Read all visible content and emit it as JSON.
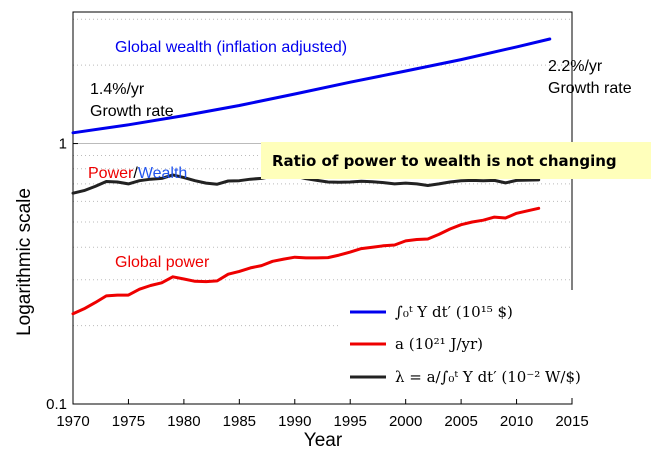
{
  "chart_data": {
    "type": "line",
    "title": "",
    "xlabel": "Year",
    "ylabel": "Logarithmic scale",
    "xlim": [
      1970,
      2015
    ],
    "ylim": [
      0.1,
      3.2
    ],
    "yscale": "log",
    "grid": "horizontal dotted",
    "x_ticks": [
      "1970",
      "1975",
      "1980",
      "1985",
      "1990",
      "1995",
      "2000",
      "2005",
      "2010",
      "2015"
    ],
    "y_ticks": [
      "0.1",
      "1"
    ],
    "legend_placement": "bottom-right",
    "series": [
      {
        "name": "∫₀ᵗ Y dt′ (10¹⁵ $)",
        "color": "#0000ee",
        "x": [
          1970,
          1975,
          1980,
          1985,
          1990,
          1995,
          2000,
          2005,
          2010,
          2013
        ],
        "values": [
          1.1,
          1.18,
          1.28,
          1.4,
          1.55,
          1.72,
          1.9,
          2.1,
          2.35,
          2.52
        ]
      },
      {
        "name": "a (10²¹ J/yr)",
        "color": "#ee0000",
        "x": [
          1970,
          1971,
          1972,
          1973,
          1974,
          1975,
          1976,
          1977,
          1978,
          1979,
          1980,
          1981,
          1982,
          1983,
          1984,
          1985,
          1986,
          1987,
          1988,
          1989,
          1990,
          1991,
          1992,
          1993,
          1994,
          1995,
          1996,
          1997,
          1998,
          1999,
          2000,
          2001,
          2002,
          2003,
          2004,
          2005,
          2006,
          2007,
          2008,
          2009,
          2010,
          2011,
          2012
        ],
        "values": [
          0.222,
          0.232,
          0.245,
          0.26,
          0.262,
          0.262,
          0.276,
          0.285,
          0.292,
          0.308,
          0.302,
          0.296,
          0.295,
          0.297,
          0.315,
          0.323,
          0.333,
          0.34,
          0.353,
          0.36,
          0.366,
          0.364,
          0.364,
          0.365,
          0.373,
          0.383,
          0.395,
          0.4,
          0.405,
          0.408,
          0.423,
          0.428,
          0.43,
          0.448,
          0.47,
          0.488,
          0.5,
          0.508,
          0.522,
          0.518,
          0.54,
          0.552,
          0.564
        ]
      },
      {
        "name": "λ = a/∫₀ᵗ Y dt′ (10⁻² W/$)",
        "color": "#222222",
        "x": [
          1970,
          1971,
          1972,
          1973,
          1974,
          1975,
          1976,
          1977,
          1978,
          1979,
          1980,
          1981,
          1982,
          1983,
          1984,
          1985,
          1986,
          1987,
          1988,
          1989,
          1990,
          1991,
          1992,
          1993,
          1994,
          1995,
          1996,
          1997,
          1998,
          1999,
          2000,
          2001,
          2002,
          2003,
          2004,
          2005,
          2006,
          2007,
          2008,
          2009,
          2010,
          2011,
          2012
        ],
        "values": [
          0.645,
          0.66,
          0.685,
          0.715,
          0.712,
          0.7,
          0.72,
          0.73,
          0.735,
          0.758,
          0.74,
          0.72,
          0.705,
          0.698,
          0.718,
          0.72,
          0.73,
          0.735,
          0.75,
          0.752,
          0.75,
          0.733,
          0.722,
          0.712,
          0.71,
          0.712,
          0.716,
          0.713,
          0.708,
          0.7,
          0.705,
          0.7,
          0.69,
          0.7,
          0.712,
          0.72,
          0.722,
          0.72,
          0.722,
          0.706,
          0.722,
          0.724,
          0.725
        ]
      }
    ],
    "annotations": {
      "wealth_label": "Global wealth (inflation adjusted)",
      "rate_left_value": "1.4%/yr",
      "rate_left_text": "Growth rate",
      "rate_right_value": "2.2%/yr",
      "rate_right_text": "Growth rate",
      "power_wealth_part1": "Power",
      "power_wealth_sep": "/",
      "power_wealth_part2": "Wealth",
      "callout": "Ratio of power to wealth is not changing",
      "power_label": "Global power"
    },
    "colors": {
      "wealth": "#0000ee",
      "power": "#ee0000",
      "ratio": "#222222",
      "callout_bg": "#ffffbb",
      "grid": "#bbbbbb"
    }
  }
}
